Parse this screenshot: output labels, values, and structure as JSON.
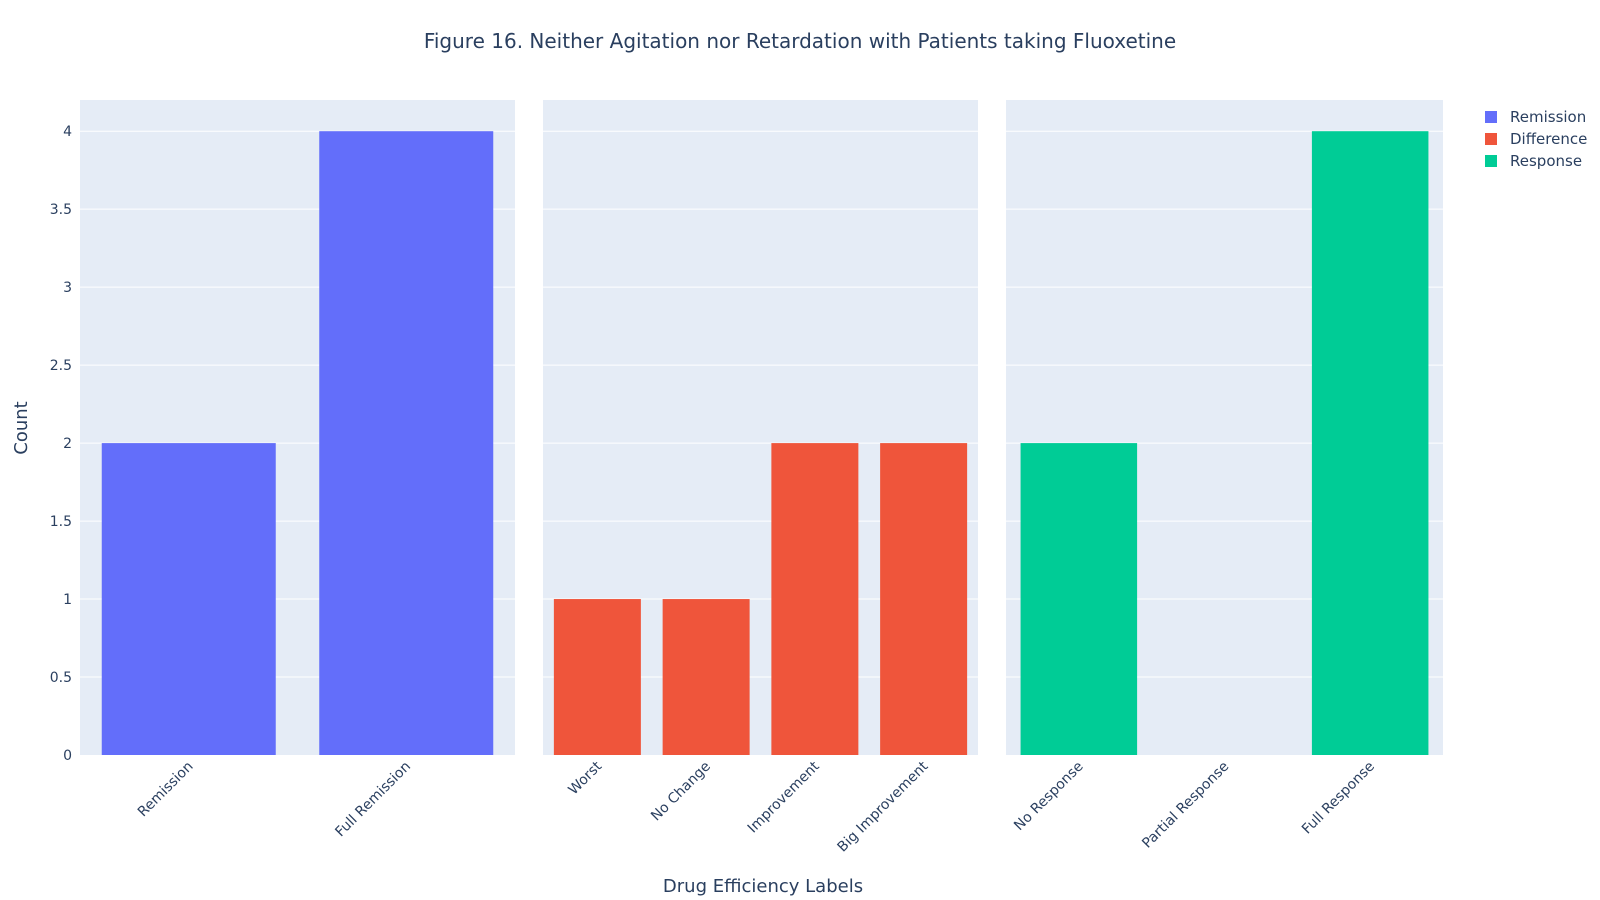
{
  "chart_data": {
    "type": "bar",
    "title": "Figure 16. Neither Agitation nor Retardation with Patients taking Fluoxetine",
    "xlabel": "Drug Efficiency Labels",
    "ylabel": "Count",
    "ylim": [
      0,
      4.2
    ],
    "yticks": [
      0,
      0.5,
      1,
      1.5,
      2,
      2.5,
      3,
      3.5,
      4
    ],
    "ytick_labels": [
      "0",
      "0.5",
      "1",
      "1.5",
      "2",
      "2.5",
      "3",
      "3.5",
      "4"
    ],
    "grid": true,
    "legend_position": "top-right",
    "series": [
      {
        "name": "Remission",
        "color": "#636efa",
        "categories": [
          "Remission",
          "Full Remission"
        ],
        "values": [
          2,
          4
        ]
      },
      {
        "name": "Difference",
        "color": "#ef553b",
        "categories": [
          "Worst",
          "No Change",
          "Improvement",
          "Big Improvement"
        ],
        "values": [
          1,
          1,
          2,
          2
        ]
      },
      {
        "name": "Response",
        "color": "#00cc96",
        "categories": [
          "No Response",
          "Partial Response",
          "Full Response"
        ],
        "values": [
          2,
          0,
          4
        ]
      }
    ]
  }
}
